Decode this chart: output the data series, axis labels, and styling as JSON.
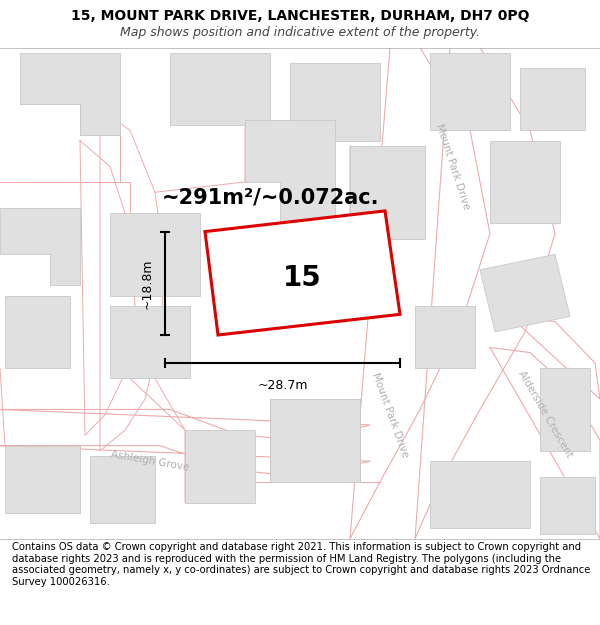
{
  "title_line1": "15, MOUNT PARK DRIVE, LANCHESTER, DURHAM, DH7 0PQ",
  "title_line2": "Map shows position and indicative extent of the property.",
  "footer_text": "Contains OS data © Crown copyright and database right 2021. This information is subject to Crown copyright and database rights 2023 and is reproduced with the permission of HM Land Registry. The polygons (including the associated geometry, namely x, y co-ordinates) are subject to Crown copyright and database rights 2023 Ordnance Survey 100026316.",
  "area_label": "~291m²/~0.072ac.",
  "number_label": "15",
  "width_label": "~28.7m",
  "height_label": "~18.8m",
  "map_bg": "#ffffff",
  "building_color": "#e0e0e0",
  "building_edge": "#c8c8c8",
  "road_outline_color": "#f0aaaa",
  "road_label_color": "#b0b0b0",
  "red_line": "#dd0000",
  "dim_color": "#333333",
  "title_fontsize": 10,
  "subtitle_fontsize": 9,
  "footer_fontsize": 7.2,
  "area_fontsize": 15,
  "number_fontsize": 20,
  "dim_fontsize": 9
}
